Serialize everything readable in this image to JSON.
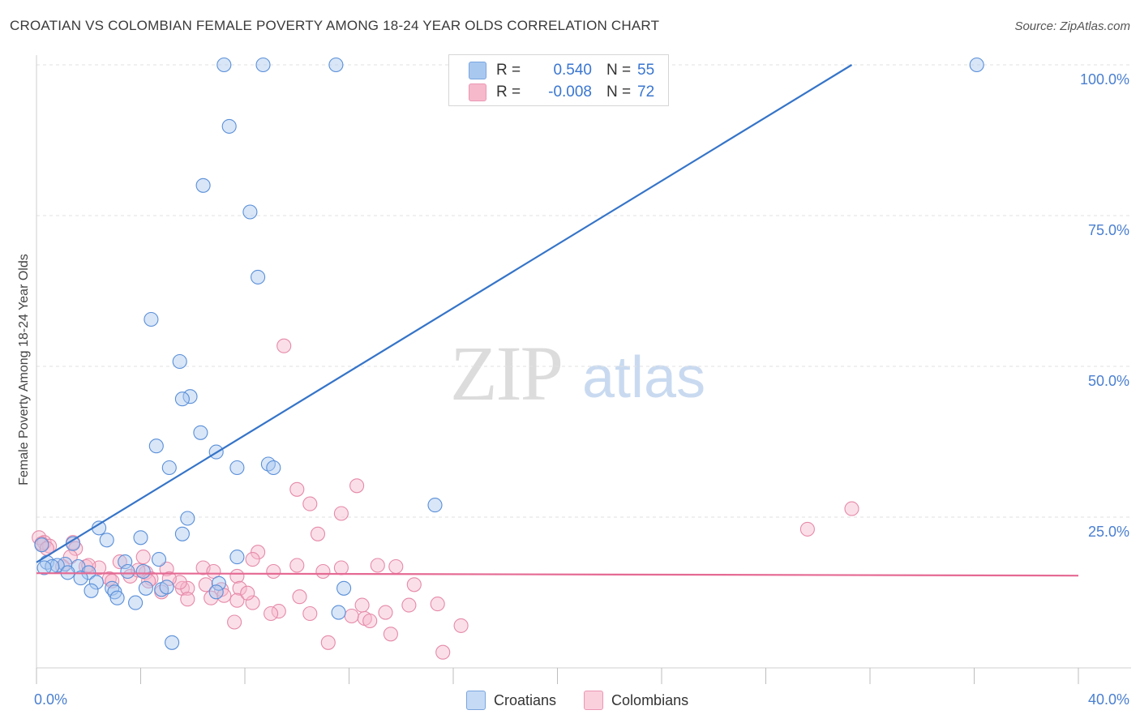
{
  "header": {
    "title": "CROATIAN VS COLOMBIAN FEMALE POVERTY AMONG 18-24 YEAR OLDS CORRELATION CHART",
    "source": "Source: ZipAtlas.com"
  },
  "watermark": {
    "zip": "ZIP",
    "atlas": "atlas"
  },
  "legend": {
    "rows": [
      {
        "r_label": "R =",
        "r_value": "0.540",
        "n_label": "N =",
        "n_value": "55",
        "color": "#a9c8f0"
      },
      {
        "r_label": "R =",
        "r_value": "-0.008",
        "n_label": "N =",
        "n_value": "72",
        "color": "#f6b9cc"
      }
    ]
  },
  "bottom_legend": {
    "croatians": "Croatians",
    "colombians": "Colombians"
  },
  "axes": {
    "ylabel": "Female Poverty Among 18-24 Year Olds",
    "x_min_label": "0.0%",
    "x_max_label": "40.0%",
    "y_ticks": [
      "100.0%",
      "75.0%",
      "50.0%",
      "25.0%"
    ]
  },
  "chart_data": {
    "type": "scatter",
    "title": "CROATIAN VS COLOMBIAN FEMALE POVERTY AMONG 18-24 YEAR OLDS CORRELATION CHART",
    "xlabel": "",
    "ylabel": "Female Poverty Among 18-24 Year Olds",
    "xlim": [
      0,
      40
    ],
    "ylim": [
      0,
      100
    ],
    "y_ticks": [
      25,
      50,
      75,
      100
    ],
    "x_ticks": [
      0,
      40
    ],
    "grid": true,
    "legend_position": "top-center",
    "series": [
      {
        "name": "Croatians",
        "color": "#a9c8f0",
        "stroke": "#5a8fd8",
        "trend": {
          "x0": 0,
          "y0": 17.5,
          "x1": 31.3,
          "y1": 100,
          "color": "#3574c8"
        },
        "points": [
          [
            7.2,
            100
          ],
          [
            8.7,
            100
          ],
          [
            11.5,
            100
          ],
          [
            36.1,
            100
          ],
          [
            7.4,
            89.8
          ],
          [
            6.4,
            80
          ],
          [
            8.2,
            75.6
          ],
          [
            8.5,
            64.8
          ],
          [
            4.4,
            57.8
          ],
          [
            5.5,
            50.8
          ],
          [
            5.9,
            45
          ],
          [
            5.6,
            44.6
          ],
          [
            6.3,
            39
          ],
          [
            4.6,
            36.8
          ],
          [
            6.9,
            35.8
          ],
          [
            5.1,
            33.2
          ],
          [
            7.7,
            33.2
          ],
          [
            8.9,
            33.8
          ],
          [
            9.1,
            33.2
          ],
          [
            15.3,
            27
          ],
          [
            5.8,
            24.8
          ],
          [
            2.4,
            23.2
          ],
          [
            5.6,
            22.2
          ],
          [
            2.7,
            21.2
          ],
          [
            4.0,
            21.6
          ],
          [
            1.4,
            20.6
          ],
          [
            0.2,
            20.4
          ],
          [
            4.7,
            18.0
          ],
          [
            7.7,
            18.4
          ],
          [
            0.4,
            17.5
          ],
          [
            1.1,
            17.2
          ],
          [
            0.8,
            17.0
          ],
          [
            0.6,
            16.8
          ],
          [
            1.6,
            16.8
          ],
          [
            3.4,
            17.6
          ],
          [
            3.5,
            16.0
          ],
          [
            2.0,
            15.8
          ],
          [
            4.1,
            16.0
          ],
          [
            1.7,
            14.9
          ],
          [
            2.3,
            14.2
          ],
          [
            2.1,
            12.8
          ],
          [
            2.9,
            13.2
          ],
          [
            3.0,
            12.6
          ],
          [
            4.2,
            13.2
          ],
          [
            4.8,
            13.0
          ],
          [
            7.0,
            14.0
          ],
          [
            11.8,
            13.2
          ],
          [
            3.1,
            11.6
          ],
          [
            3.8,
            10.8
          ],
          [
            11.6,
            9.2
          ],
          [
            5.2,
            4.2
          ],
          [
            0.3,
            16.6
          ],
          [
            1.2,
            15.8
          ],
          [
            5.0,
            13.4
          ],
          [
            6.9,
            12.6
          ]
        ]
      },
      {
        "name": "Colombians",
        "color": "#f6b9cc",
        "stroke": "#e58aa9",
        "trend": {
          "x0": 0,
          "y0": 15.7,
          "x1": 40,
          "y1": 15.3,
          "color": "#e56a93"
        },
        "points": [
          [
            0.1,
            21.6
          ],
          [
            0.3,
            20.8
          ],
          [
            0.5,
            20.2
          ],
          [
            1.4,
            20.8
          ],
          [
            1.5,
            19.8
          ],
          [
            1.3,
            18.4
          ],
          [
            9.5,
            53.4
          ],
          [
            12.3,
            30.2
          ],
          [
            10.0,
            29.6
          ],
          [
            10.5,
            27.2
          ],
          [
            11.7,
            25.6
          ],
          [
            31.3,
            26.4
          ],
          [
            29.6,
            23.0
          ],
          [
            10.8,
            22.2
          ],
          [
            8.5,
            19.2
          ],
          [
            4.1,
            18.4
          ],
          [
            8.3,
            18.0
          ],
          [
            3.2,
            17.6
          ],
          [
            2.4,
            16.6
          ],
          [
            1.9,
            16.8
          ],
          [
            9.1,
            16.0
          ],
          [
            10.0,
            17.0
          ],
          [
            13.1,
            17.0
          ],
          [
            6.4,
            16.6
          ],
          [
            11.0,
            16.0
          ],
          [
            11.7,
            16.6
          ],
          [
            4.2,
            15.8
          ],
          [
            5.0,
            16.4
          ],
          [
            3.6,
            15.2
          ],
          [
            2.8,
            14.8
          ],
          [
            4.4,
            14.8
          ],
          [
            4.3,
            14.4
          ],
          [
            7.7,
            15.2
          ],
          [
            6.5,
            13.8
          ],
          [
            7.8,
            13.2
          ],
          [
            2.9,
            14.4
          ],
          [
            6.7,
            11.6
          ],
          [
            5.6,
            13.2
          ],
          [
            7.1,
            13.0
          ],
          [
            4.8,
            12.6
          ],
          [
            5.8,
            13.2
          ],
          [
            7.7,
            11.2
          ],
          [
            10.1,
            11.8
          ],
          [
            7.2,
            12.0
          ],
          [
            5.8,
            11.4
          ],
          [
            8.3,
            10.8
          ],
          [
            15.4,
            10.6
          ],
          [
            14.3,
            10.4
          ],
          [
            12.5,
            10.4
          ],
          [
            13.4,
            9.2
          ],
          [
            9.3,
            9.4
          ],
          [
            9.0,
            9.0
          ],
          [
            10.5,
            9.0
          ],
          [
            12.1,
            8.6
          ],
          [
            12.6,
            8.2
          ],
          [
            12.8,
            7.8
          ],
          [
            7.6,
            7.6
          ],
          [
            16.3,
            7.0
          ],
          [
            13.6,
            5.6
          ],
          [
            11.2,
            4.2
          ],
          [
            15.6,
            2.6
          ],
          [
            14.5,
            13.8
          ],
          [
            5.5,
            14.2
          ],
          [
            3.9,
            16.2
          ],
          [
            2.0,
            17.0
          ],
          [
            6.8,
            16.0
          ],
          [
            1.0,
            16.8
          ],
          [
            0.2,
            20.6
          ],
          [
            0.4,
            19.8
          ],
          [
            5.1,
            14.8
          ],
          [
            8.1,
            12.4
          ],
          [
            13.8,
            16.8
          ]
        ]
      }
    ]
  }
}
